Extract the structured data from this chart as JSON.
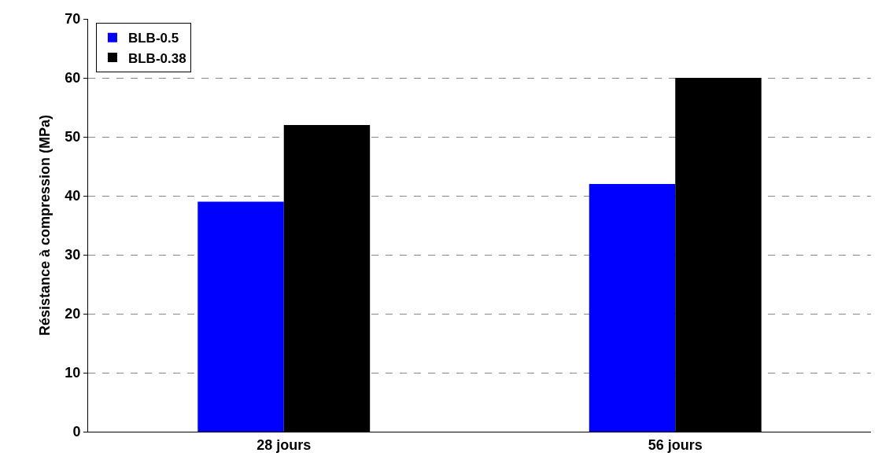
{
  "chart_data": {
    "type": "bar",
    "ylabel": "Résistance à compression (MPa)",
    "categories": [
      "28 jours",
      "56 jours"
    ],
    "series": [
      {
        "name": "BLB-0.5",
        "color": "#0000ff",
        "values": [
          39,
          42
        ]
      },
      {
        "name": "BLB-0.38",
        "color": "#000000",
        "values": [
          52,
          60
        ]
      }
    ],
    "ylim": [
      0,
      70
    ],
    "yticks": [
      0,
      10,
      20,
      30,
      40,
      50,
      60,
      70
    ],
    "grid": "y",
    "legend": "top left"
  }
}
